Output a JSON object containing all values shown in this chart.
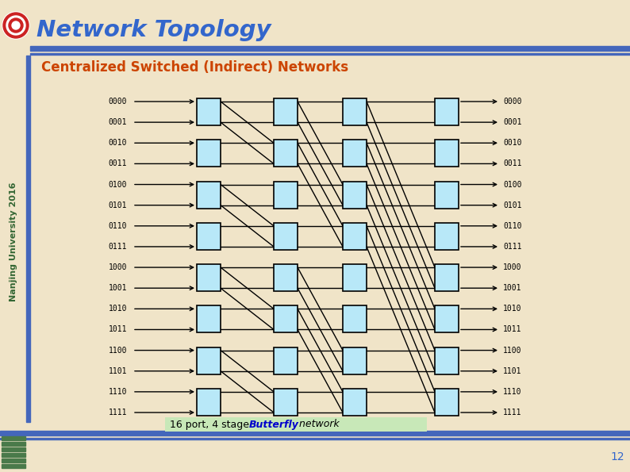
{
  "title": "Network Topology",
  "subtitle": "Centralized Switched (Indirect) Networks",
  "page_number": "12",
  "bg_color": "#f0e4c8",
  "title_color": "#3366cc",
  "subtitle_color": "#cc4400",
  "bar_color": "#4466bb",
  "switch_fill": "#b8e8f8",
  "switch_edge": "#000000",
  "footer_box_color": "#c8e8b8",
  "footer_butterfly_color": "#0000cc",
  "side_text_color": "#336633",
  "ports": [
    "0000",
    "0001",
    "0010",
    "0011",
    "0100",
    "0101",
    "0110",
    "0111",
    "1000",
    "1001",
    "1010",
    "1011",
    "1100",
    "1101",
    "1110",
    "1111"
  ]
}
